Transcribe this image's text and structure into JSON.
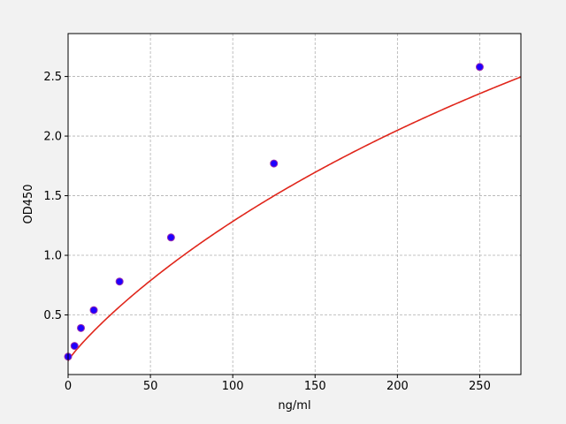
{
  "chart_data": {
    "type": "scatter",
    "title": "",
    "xlabel": "ng/ml",
    "ylabel": "OD450",
    "xlim": [
      0,
      275
    ],
    "ylim": [
      0.0,
      2.86
    ],
    "x_ticks": [
      0,
      50,
      100,
      150,
      200,
      250
    ],
    "y_ticks": [
      0.5,
      1.0,
      1.5,
      2.0,
      2.5
    ],
    "x_tick_labels": [
      "0",
      "50",
      "100",
      "150",
      "200",
      "250"
    ],
    "y_tick_labels": [
      "0.5",
      "1.0",
      "1.5",
      "2.0",
      "2.5"
    ],
    "grid": true,
    "series": [
      {
        "type": "scatter",
        "x": [
          0,
          3.9,
          7.8,
          15.6,
          31.25,
          62.5,
          125,
          250
        ],
        "y": [
          0.15,
          0.24,
          0.39,
          0.54,
          0.78,
          1.15,
          1.77,
          2.58
        ],
        "color": "#1f00ff",
        "edge_color": "#9b2fae"
      },
      {
        "type": "line",
        "fit": {
          "form": "4PL",
          "a": 0.115,
          "d": 8.0,
          "c": 697.6,
          "b": 0.9
        },
        "x_range": [
          0,
          275
        ],
        "color": "#e0261b"
      }
    ]
  },
  "colors": {
    "background": "#f2f2f2",
    "plot_area": "#ffffff",
    "grid": "#b0b0b0",
    "axes": "#000000"
  }
}
